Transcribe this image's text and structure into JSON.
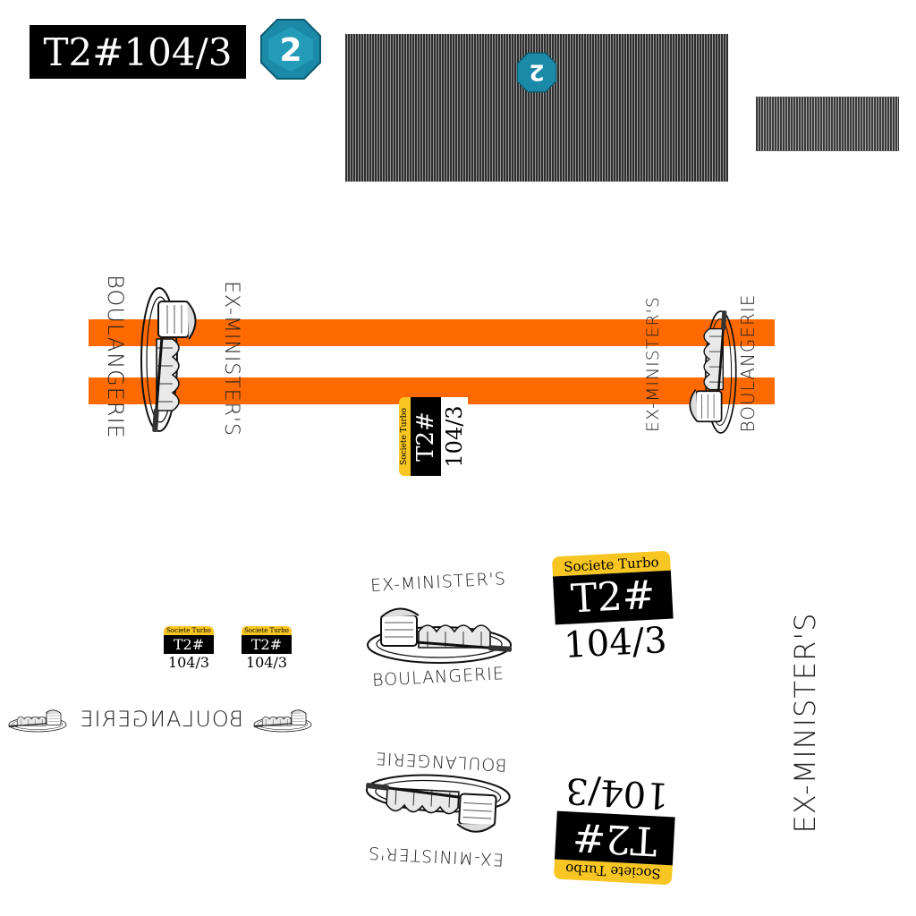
{
  "title_plate": {
    "text": "T2#104/3"
  },
  "logo": {
    "icon": "octagon-2-logo",
    "color": "#1a8aa8",
    "numeral": "2"
  },
  "bakery": {
    "name": "EX-MINISTER'S",
    "type": "BOULANGERIE",
    "icon": "bread-platter-icon"
  },
  "badge": {
    "company": "Societe Turbo",
    "code": "T2#",
    "number": "104/3"
  },
  "colors": {
    "orange": "#ff6a00",
    "yellow": "#f7c623",
    "black": "#000000",
    "stripe_dark": "#2e2e2e",
    "stripe_light": "#9a9a9a"
  }
}
